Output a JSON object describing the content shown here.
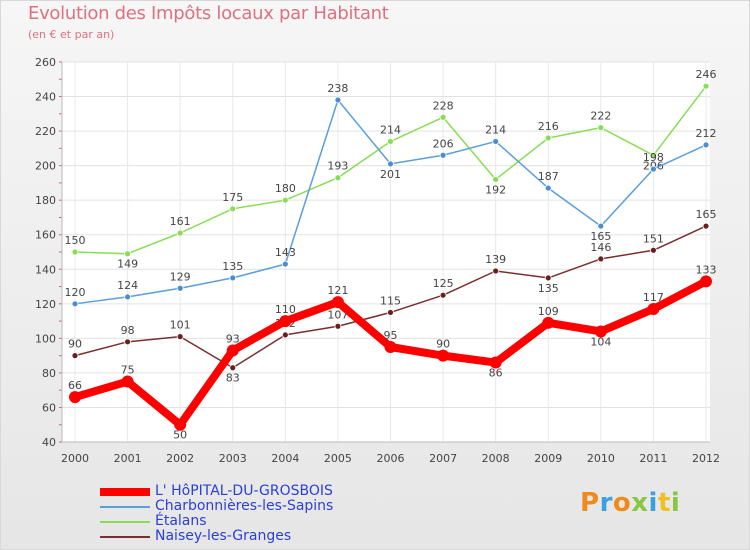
{
  "header": {
    "title": "Evolution des Impôts locaux par Habitant",
    "subtitle": "(en € et par an)"
  },
  "logo": {
    "text": "Proxiti"
  },
  "chart_data": {
    "type": "line",
    "title": "Evolution des Impôts locaux par Habitant",
    "subtitle": "(en € et par an)",
    "xlabel": "",
    "ylabel": "",
    "ylim": [
      40,
      260
    ],
    "yticks": [
      40,
      60,
      80,
      100,
      120,
      140,
      160,
      180,
      200,
      220,
      240,
      260
    ],
    "grid": true,
    "legend_position": "bottom-left",
    "categories": [
      "2000",
      "2001",
      "2002",
      "2003",
      "2004",
      "2005",
      "2006",
      "2007",
      "2008",
      "2009",
      "2010",
      "2011",
      "2012"
    ],
    "series": [
      {
        "name": "Etalans",
        "legend_label": "Étalans",
        "color": "#88dd55",
        "marker": "#88dd55",
        "values": [
          150,
          149,
          161,
          175,
          180,
          193,
          214,
          228,
          192,
          216,
          222,
          206,
          246
        ]
      },
      {
        "name": "Charbonnieres-les-Sapins",
        "legend_label": "Charbonnières-les-Sapins",
        "color": "#5a9edc",
        "marker": "#4a8ed0",
        "values": [
          120,
          124,
          129,
          135,
          143,
          238,
          201,
          206,
          214,
          187,
          165,
          198,
          212
        ]
      },
      {
        "name": "Naisey-les-Granges",
        "legend_label": "Naisey-les-Granges",
        "color": "#7a2e2e",
        "marker": "#6a1f1f",
        "values": [
          90,
          98,
          101,
          83,
          102,
          107,
          115,
          125,
          139,
          135,
          146,
          151,
          165
        ]
      },
      {
        "name": "L'HOPITAL-DU-GROSBOIS",
        "legend_label": "L' HôPITAL-DU-GROSBOIS",
        "color": "#ff0000",
        "marker": "#ff0000",
        "values": [
          66,
          75,
          50,
          93,
          110,
          121,
          95,
          90,
          86,
          109,
          104,
          117,
          133
        ]
      }
    ]
  },
  "legend": {
    "items": [
      {
        "label": "L' HôPITAL-DU-GROSBOIS",
        "color": "#ff0000"
      },
      {
        "label": "Charbonnières-les-Sapins",
        "color": "#5a9edc"
      },
      {
        "label": "Étalans",
        "color": "#88dd55"
      },
      {
        "label": "Naisey-les-Granges",
        "color": "#7a2e2e"
      }
    ]
  }
}
